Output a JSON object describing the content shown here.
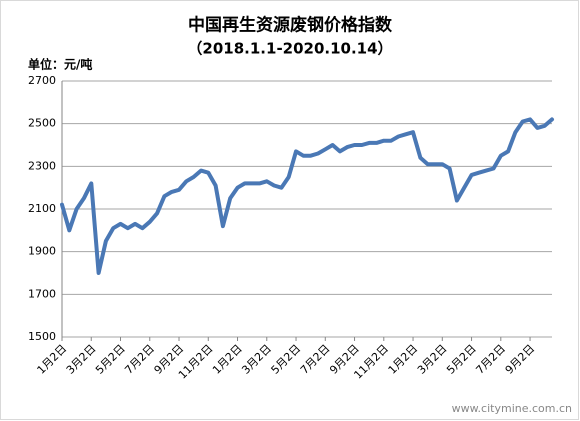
{
  "chart_data": {
    "type": "line",
    "title": "中国再生资源废钢价格指数",
    "subtitle": "（2018.1.1-2020.10.14）",
    "y_label": "单位：元/吨",
    "watermark": "www.citymine.com.cn",
    "categories": [
      "1月2日",
      null,
      null,
      null,
      "3月2日",
      null,
      null,
      null,
      "5月2日",
      null,
      null,
      null,
      "7月2日",
      null,
      null,
      null,
      "9月2日",
      null,
      null,
      null,
      "11月2日",
      null,
      null,
      null,
      "1月2日",
      null,
      null,
      null,
      "3月2日",
      null,
      null,
      null,
      "5月2日",
      null,
      null,
      null,
      "7月2日",
      null,
      null,
      null,
      "9月2日",
      null,
      null,
      null,
      "11月2日",
      null,
      null,
      null,
      "1月2日",
      null,
      null,
      null,
      "3月2日",
      null,
      null,
      null,
      "5月2日",
      null,
      null,
      null,
      "7月2日",
      null,
      null,
      null,
      "9月2日",
      null,
      null,
      null
    ],
    "series": [
      {
        "name": "废钢价格指数",
        "color": "#4a78b5",
        "values": [
          2120,
          2000,
          2100,
          2150,
          2220,
          1800,
          1950,
          2010,
          2030,
          2010,
          2030,
          2010,
          2040,
          2080,
          2160,
          2180,
          2190,
          2230,
          2250,
          2280,
          2270,
          2210,
          2020,
          2150,
          2200,
          2220,
          2220,
          2220,
          2230,
          2210,
          2200,
          2250,
          2370,
          2350,
          2350,
          2360,
          2380,
          2400,
          2370,
          2390,
          2400,
          2400,
          2410,
          2410,
          2420,
          2420,
          2440,
          2450,
          2460,
          2340,
          2310,
          2310,
          2310,
          2290,
          2140,
          2200,
          2260,
          2270,
          2280,
          2290,
          2350,
          2370,
          2460,
          2510,
          2520,
          2480,
          2490,
          2520
        ]
      }
    ],
    "ylim": [
      1500,
      2700
    ],
    "yticks": [
      1500,
      1700,
      1900,
      2100,
      2300,
      2500,
      2700
    ],
    "grid": true
  }
}
